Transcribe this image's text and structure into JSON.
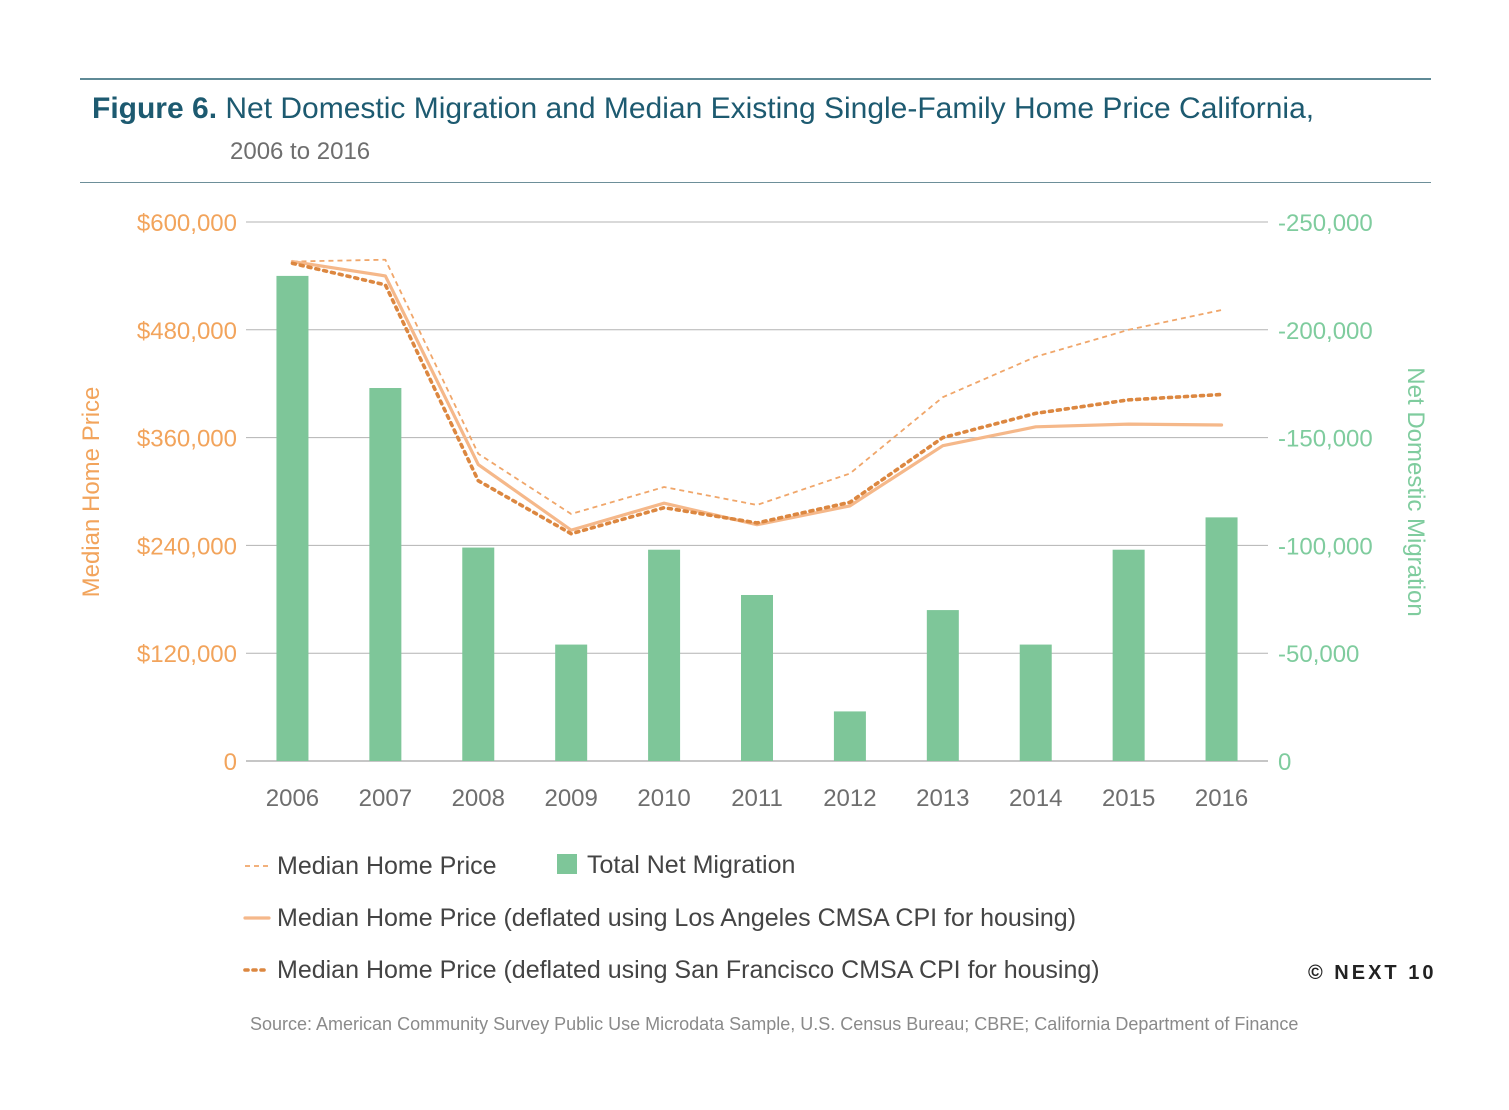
{
  "header": {
    "figure_label": "Figure 6.",
    "title": "Net Domestic Migration and Median Existing Single-Family Home Price California,",
    "subtitle": "2006 to 2016"
  },
  "colors": {
    "price_axis": "#f2a45c",
    "migration_axis": "#7fcc9e",
    "bars": "#7ec699",
    "nominal_line": "#f0a66a",
    "la_line": "#f5b88a",
    "sf_line": "#dc8740",
    "grid": "#b3b3b3"
  },
  "chart_data": {
    "type": "bar",
    "categories": [
      "2006",
      "2007",
      "2008",
      "2009",
      "2010",
      "2011",
      "2012",
      "2013",
      "2014",
      "2015",
      "2016"
    ],
    "y_left": {
      "label": "Median Home Price",
      "range": [
        0,
        600000
      ],
      "ticks": [
        "0",
        "$120,000",
        "$240,000",
        "$360,000",
        "$480,000",
        "$600,000"
      ]
    },
    "y_right": {
      "label": "Net Domestic Migration",
      "range": [
        0,
        -250000
      ],
      "ticks": [
        "0",
        "-50,000",
        "-100,000",
        "-150,000",
        "-200,000",
        "-250,000"
      ]
    },
    "series": [
      {
        "name": "Total Net Migration",
        "type": "bar",
        "axis": "right",
        "values": [
          -225000,
          -173000,
          -99000,
          -54000,
          -98000,
          -77000,
          -23000,
          -70000,
          -54000,
          -98000,
          -113000
        ]
      },
      {
        "name": "Median Home Price",
        "type": "line",
        "style": "thin-dashed",
        "axis": "left",
        "values": [
          556000,
          558000,
          342000,
          275000,
          305000,
          285000,
          320000,
          405000,
          450000,
          480000,
          502000
        ]
      },
      {
        "name": "Median Home Price (deflated using Los Angeles CMSA CPI for housing)",
        "type": "line",
        "style": "solid",
        "axis": "left",
        "values": [
          556000,
          540000,
          330000,
          257000,
          287000,
          263000,
          284000,
          351000,
          372000,
          375000,
          374000
        ]
      },
      {
        "name": "Median Home Price (deflated using San Francisco CMSA CPI for housing)",
        "type": "line",
        "style": "thick-dotted",
        "axis": "left",
        "values": [
          554000,
          530000,
          312000,
          253000,
          282000,
          265000,
          288000,
          360000,
          387000,
          402000,
          408000
        ]
      }
    ],
    "grid": true,
    "legend": "bottom"
  },
  "copyright": "© NEXT 10",
  "source": "Source: American Community Survey Public Use Microdata Sample, U.S. Census Bureau; CBRE; California Department of Finance"
}
